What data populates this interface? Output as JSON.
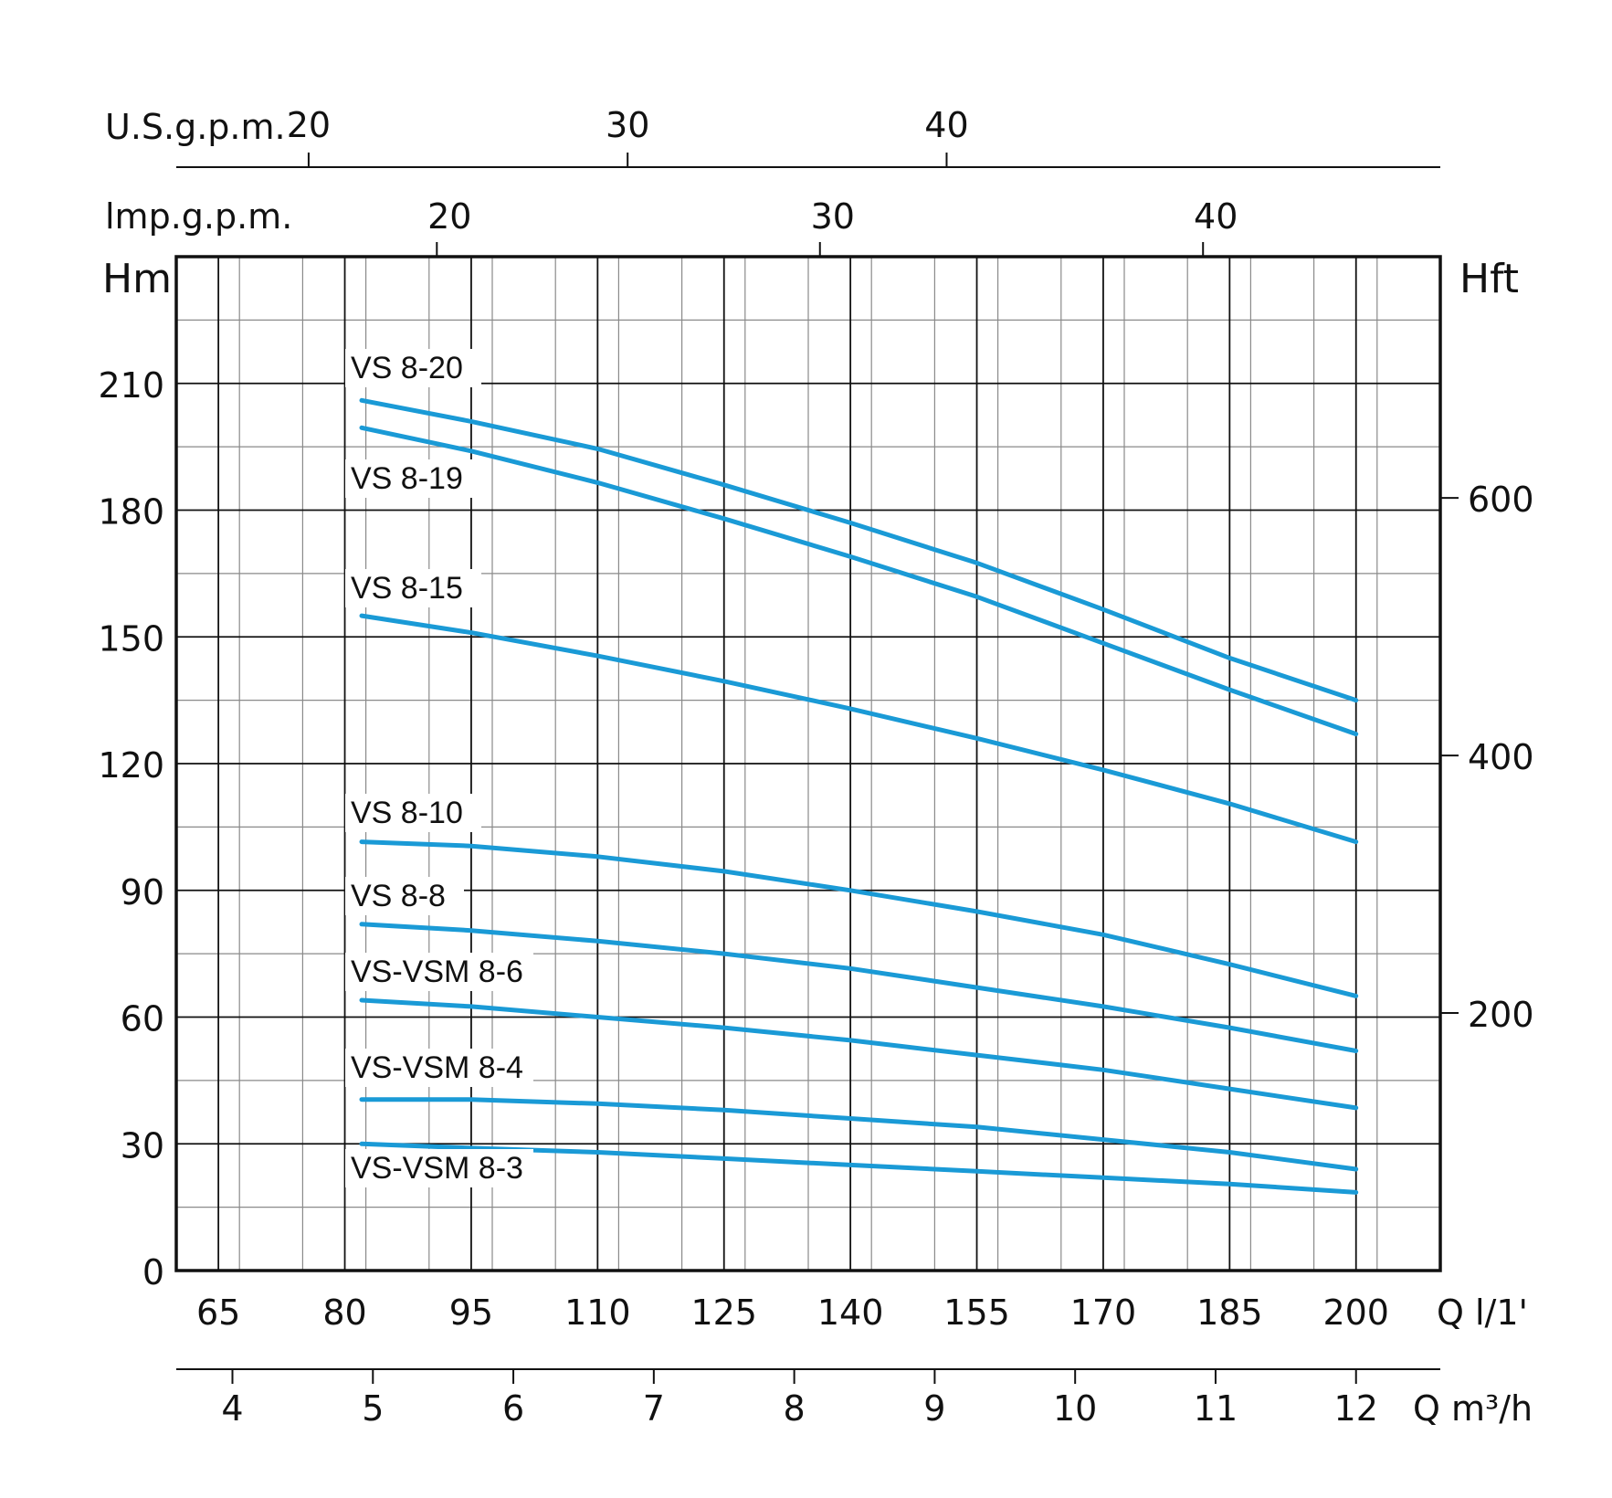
{
  "chart_data": {
    "type": "line",
    "title": "",
    "xlabel": "Q l/1'",
    "ylabel": "Hm",
    "y2label": "Hft",
    "xlim": [
      60,
      210
    ],
    "ylim": [
      0,
      240
    ],
    "grid": true,
    "x_ticks": [
      "65",
      "80",
      "95",
      "110",
      "125",
      "140",
      "155",
      "170",
      "185",
      "200"
    ],
    "y_ticks": [
      "0",
      "30",
      "60",
      "90",
      "120",
      "150",
      "180",
      "210"
    ],
    "y2_ticks": [
      "200",
      "400",
      "600"
    ],
    "m3h_axis": {
      "label": "Q m³/h",
      "ticks": [
        "4",
        "5",
        "6",
        "7",
        "8",
        "9",
        "10",
        "11",
        "12"
      ]
    },
    "usgpm_axis": {
      "label": "U.S.g.p.m.",
      "ticks": [
        "20",
        "30",
        "40"
      ]
    },
    "impgpm_axis": {
      "label": "lmp.g.p.m.",
      "ticks": [
        "20",
        "30",
        "40"
      ]
    },
    "curve_color": "#1a9ad6",
    "series": [
      {
        "name": "VS 8-20",
        "x": [
          82,
          95,
          110,
          125,
          140,
          155,
          170,
          185,
          200
        ],
        "y": [
          206,
          201,
          194.5,
          186,
          177,
          167.5,
          156.5,
          145,
          135
        ]
      },
      {
        "name": "VS 8-19",
        "x": [
          82,
          95,
          110,
          125,
          140,
          155,
          170,
          185,
          200
        ],
        "y": [
          199.5,
          194,
          186.5,
          178,
          169,
          159.5,
          148.5,
          137.5,
          127
        ]
      },
      {
        "name": "VS 8-15",
        "x": [
          82,
          95,
          110,
          125,
          140,
          155,
          170,
          185,
          200
        ],
        "y": [
          155,
          151,
          145.5,
          139.5,
          133,
          126,
          118.5,
          110.5,
          101.5
        ]
      },
      {
        "name": "VS 8-10",
        "x": [
          82,
          95,
          110,
          125,
          140,
          155,
          170,
          185,
          200
        ],
        "y": [
          101.5,
          100.5,
          98,
          94.5,
          90,
          85,
          79.5,
          72.5,
          65
        ]
      },
      {
        "name": "VS 8-8",
        "x": [
          82,
          95,
          110,
          125,
          140,
          155,
          170,
          185,
          200
        ],
        "y": [
          82,
          80.5,
          78,
          75,
          71.5,
          67,
          62.5,
          57.5,
          52
        ]
      },
      {
        "name": "VS-VSM 8-6",
        "x": [
          82,
          95,
          110,
          125,
          140,
          155,
          170,
          185,
          200
        ],
        "y": [
          64,
          62.5,
          60,
          57.5,
          54.5,
          51,
          47.5,
          43,
          38.5
        ]
      },
      {
        "name": "VS-VSM 8-4",
        "x": [
          82,
          95,
          110,
          125,
          140,
          155,
          170,
          185,
          200
        ],
        "y": [
          40.5,
          40.5,
          39.5,
          38,
          36,
          34,
          31,
          28,
          24
        ]
      },
      {
        "name": "VS-VSM 8-3",
        "x": [
          82,
          95,
          110,
          125,
          140,
          155,
          170,
          185,
          200
        ],
        "y": [
          30,
          29,
          28,
          26.5,
          25,
          23.5,
          22,
          20.5,
          18.5
        ]
      }
    ]
  }
}
